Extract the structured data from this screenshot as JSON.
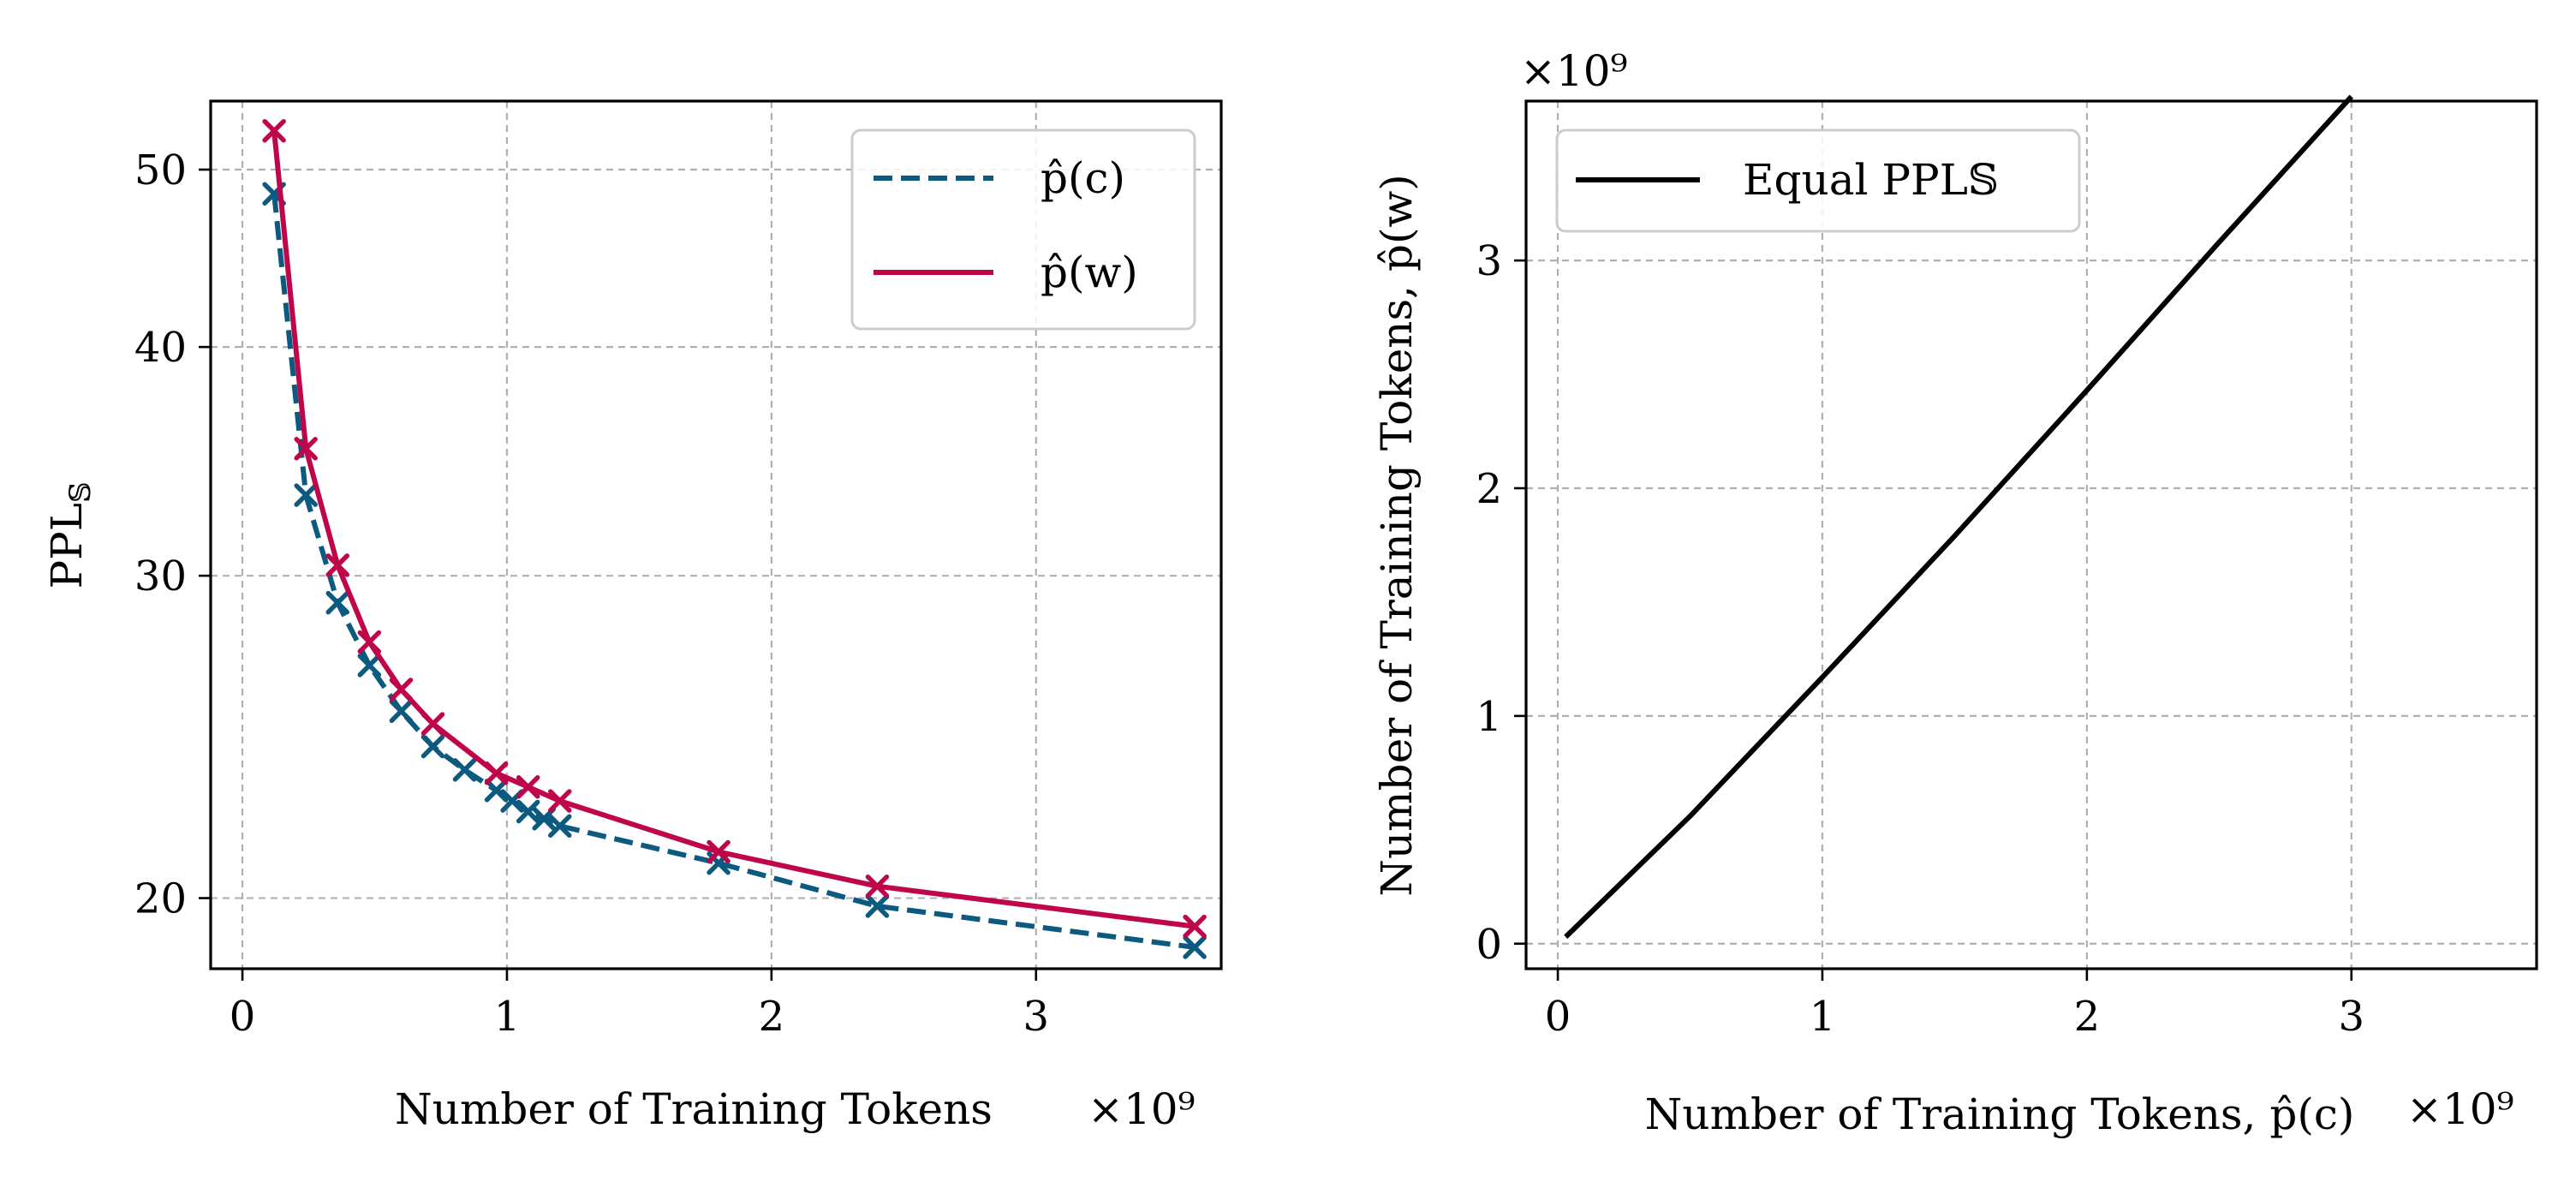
{
  "chart_data": [
    {
      "type": "line",
      "xlabel": "Number of Training Tokens",
      "x_multiplier": "×10⁹",
      "ylabel_base": "PPL",
      "ylabel_sub": "𝕊",
      "x_unit_scale": 1000000000,
      "xlim": [
        -0.12,
        3.7
      ],
      "ylim": [
        18.3,
        54.5
      ],
      "y_scale": "log",
      "x_ticks": [
        0,
        1,
        2,
        3
      ],
      "y_ticks": [
        20,
        30,
        40,
        50
      ],
      "grid": true,
      "legend_position": "top-right",
      "series": [
        {
          "name": "p̂(c)",
          "line_style": "dashed",
          "color": "#0d5a80",
          "marker": "x",
          "x": [
            0.12,
            0.24,
            0.36,
            0.48,
            0.6,
            0.72,
            0.84,
            0.96,
            1.02,
            1.08,
            1.14,
            1.2,
            1.8,
            2.4,
            3.6
          ],
          "y": [
            48.5,
            33.2,
            29.0,
            26.8,
            25.3,
            24.2,
            23.5,
            22.9,
            22.6,
            22.3,
            22.1,
            21.9,
            20.9,
            19.8,
            18.8
          ]
        },
        {
          "name": "p̂(w)",
          "line_style": "solid",
          "color": "#c0064a",
          "marker": "x",
          "x": [
            0.12,
            0.24,
            0.36,
            0.48,
            0.6,
            0.72,
            0.96,
            1.08,
            1.2,
            1.8,
            2.4,
            3.6
          ],
          "y": [
            52.5,
            35.2,
            30.4,
            27.6,
            26.0,
            24.9,
            23.4,
            23.0,
            22.6,
            21.2,
            20.3,
            19.3
          ]
        }
      ]
    },
    {
      "type": "line",
      "xlabel": "Number of Training Tokens, p̂(c)",
      "ylabel": "Number of Training Tokens, p̂(w)",
      "x_multiplier": "×10⁹",
      "y_multiplier": "×10⁹",
      "xlim": [
        -0.12,
        3.7
      ],
      "ylim": [
        -0.11,
        3.7
      ],
      "x_ticks": [
        0,
        1,
        2,
        3
      ],
      "y_ticks": [
        0,
        1,
        2,
        3
      ],
      "grid": true,
      "legend_position": "top-left",
      "series": [
        {
          "name": "Equal PPL𝕊",
          "line_style": "solid",
          "color": "#000000",
          "x": [
            0.03,
            0.5,
            1.0,
            1.5,
            2.0,
            2.5,
            3.0
          ],
          "y": [
            0.03,
            0.56,
            1.17,
            1.79,
            2.43,
            3.08,
            3.72
          ]
        }
      ]
    }
  ]
}
